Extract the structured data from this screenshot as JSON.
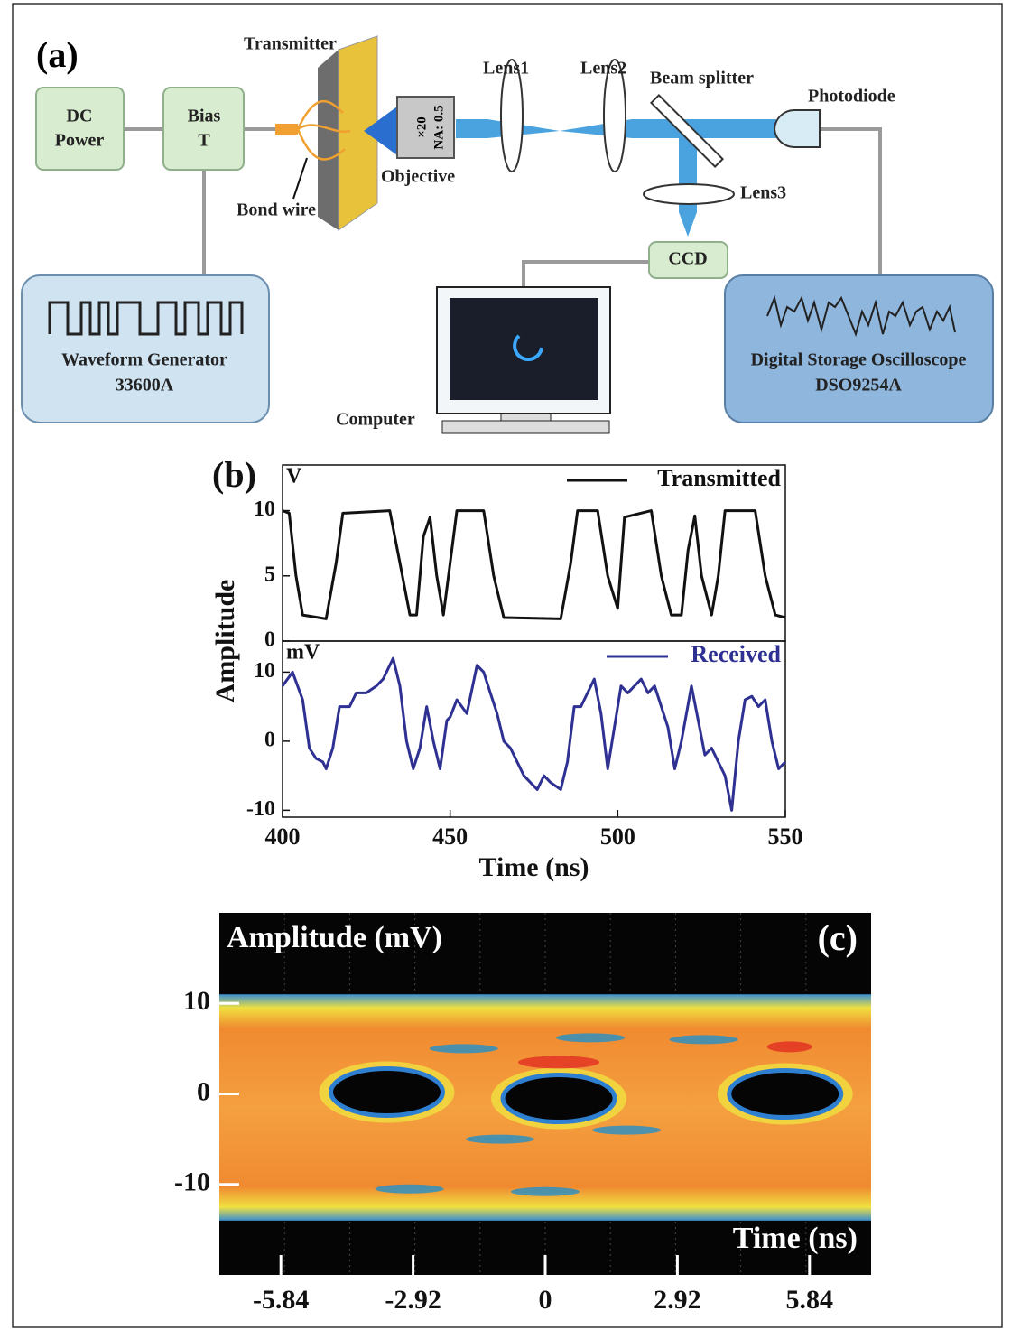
{
  "diagram": {
    "panel_label": "(a)",
    "dc_power": [
      "DC",
      "Power"
    ],
    "bias_t": [
      "Bias",
      "T"
    ],
    "transmitter": "Transmitter",
    "bond_wire": "Bond wire",
    "objective": "Objective",
    "objective_spec": [
      "×20",
      "NA: 0.5"
    ],
    "lens1": "Lens1",
    "lens2": "Lens2",
    "beam_splitter": "Beam splitter",
    "lens3": "Lens3",
    "photodiode": "Photodiode",
    "ccd": "CCD",
    "computer": "Computer",
    "waveform_generator": [
      "Waveform Generator",
      "33600A"
    ],
    "oscilloscope": [
      "Digital Storage Oscilloscope",
      "DSO9254A"
    ]
  },
  "chart_data": [
    {
      "type": "line",
      "panel_label": "(b)",
      "ylabel": "Amplitude",
      "unit_label": "V",
      "x": [
        400,
        402,
        404,
        406,
        413,
        416,
        418,
        432,
        435,
        438,
        440,
        442,
        444,
        446,
        448,
        450,
        452,
        460,
        463,
        466,
        483,
        486,
        488,
        494,
        497,
        500,
        502,
        510,
        513,
        516,
        519,
        521,
        523,
        525,
        528,
        530,
        532,
        541,
        544,
        547,
        550
      ],
      "series": [
        {
          "name": "Transmitted",
          "color": "#111111",
          "values": [
            10,
            9.8,
            5,
            2,
            1.7,
            6,
            9.8,
            10,
            6,
            2,
            2,
            8,
            9.5,
            5,
            2,
            6,
            10,
            10,
            5,
            1.8,
            1.7,
            6,
            10,
            10,
            5,
            2.5,
            9.5,
            10,
            5,
            2,
            2,
            7,
            9.6,
            5,
            2,
            5,
            10,
            10,
            5,
            2,
            1.8
          ]
        }
      ],
      "xlim": [
        400,
        550
      ],
      "ylim": [
        0,
        13.5
      ],
      "yticks": [
        0,
        5,
        10
      ]
    },
    {
      "type": "line",
      "unit_label": "mV",
      "xlabel": "Time (ns)",
      "x": [
        400,
        403,
        406,
        408,
        410,
        412,
        413,
        415,
        417,
        420,
        422,
        425,
        428,
        430,
        433,
        435,
        437,
        439,
        441,
        443,
        445,
        447,
        449,
        450,
        452,
        455,
        458,
        460,
        462,
        464,
        466,
        468,
        470,
        472,
        474,
        476,
        478,
        480,
        483,
        485,
        487,
        489,
        491,
        493,
        495,
        497,
        499,
        501,
        503,
        505,
        507,
        509,
        511,
        513,
        515,
        517,
        519,
        522,
        524,
        526,
        528,
        530,
        532,
        534,
        536,
        538,
        540,
        542,
        544,
        546,
        548,
        550
      ],
      "series": [
        {
          "name": "Received",
          "color": "#2e3192",
          "values": [
            8,
            10,
            6,
            -1,
            -2.5,
            -3,
            -4,
            -1,
            5,
            5,
            7,
            7,
            8,
            9,
            12,
            8,
            0,
            -4,
            -1,
            5,
            0,
            -4,
            3,
            3.5,
            6,
            4,
            11,
            10,
            7,
            4,
            0,
            -1,
            -3,
            -5,
            -6,
            -7,
            -5,
            -6,
            -7,
            -3,
            5,
            5,
            7,
            9,
            4,
            -4,
            2,
            8,
            7,
            8,
            9,
            7,
            8,
            5,
            2,
            -4,
            0,
            8,
            3,
            -2,
            -1,
            -3,
            -5,
            -10,
            0,
            6,
            6.5,
            5,
            6,
            0,
            -4,
            -3
          ]
        }
      ],
      "xlim": [
        400,
        550
      ],
      "xticks": [
        400,
        450,
        500,
        550
      ],
      "ylim": [
        -11,
        14.5
      ],
      "yticks": [
        -10,
        0,
        10
      ]
    },
    {
      "type": "eye",
      "panel_label": "(c)",
      "ylabel": "Amplitude (mV)",
      "xlabel": "Time (ns)",
      "xlim": [
        -7.2,
        7.2
      ],
      "xticks": [
        -5.84,
        -2.92,
        0,
        2.92,
        5.84
      ],
      "ylim": [
        -20,
        20
      ],
      "yticks": [
        10,
        0,
        -10
      ]
    }
  ]
}
